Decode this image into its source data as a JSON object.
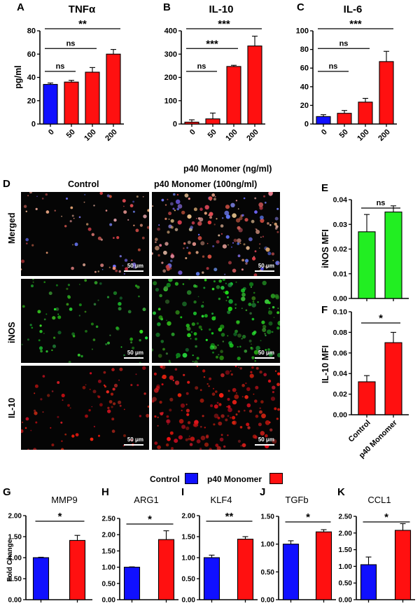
{
  "panel_letters": {
    "A": "A",
    "B": "B",
    "C": "C",
    "D": "D",
    "E": "E",
    "F": "F",
    "G": "G",
    "H": "H",
    "I": "I",
    "J": "J",
    "K": "K"
  },
  "shared_xlabel": "p40 Monomer (ng/ml)",
  "colors": {
    "control": "#1010ff",
    "p40": "#ff1010",
    "green": "#22ee22",
    "grid": "#000000"
  },
  "microscopy": {
    "columns": [
      "Control",
      "p40 Monomer (100ng/ml)"
    ],
    "rows": [
      "Merged",
      "iNOS",
      "IL-10"
    ],
    "scale_bar": "50 μm"
  },
  "legend": {
    "control": "Control",
    "p40": "p40 Monomer"
  },
  "chart_data": [
    {
      "id": "A",
      "type": "bar",
      "title": "TNFα",
      "ylabel": "pg/ml",
      "categories": [
        "0",
        "50",
        "100",
        "200"
      ],
      "values": [
        34,
        36,
        44.5,
        60
      ],
      "errors": [
        1.2,
        1.5,
        4,
        4
      ],
      "ylim": [
        0,
        80
      ],
      "yticks": [
        0,
        20,
        40,
        60,
        80
      ],
      "colors": [
        "control",
        "p40",
        "p40",
        "p40"
      ],
      "annotations": [
        {
          "from": 0,
          "to": 1,
          "label": "ns"
        },
        {
          "from": 0,
          "to": 2,
          "label": "ns"
        },
        {
          "from": 0,
          "to": 3,
          "label": "**"
        }
      ]
    },
    {
      "id": "B",
      "type": "bar",
      "title": "IL-10",
      "ylabel": "",
      "categories": [
        "0",
        "50",
        "100",
        "200"
      ],
      "values": [
        8,
        22,
        247,
        335
      ],
      "errors": [
        10,
        25,
        5,
        42
      ],
      "ylim": [
        0,
        400
      ],
      "yticks": [
        0,
        100,
        200,
        300,
        400
      ],
      "colors": [
        "p40",
        "p40",
        "p40",
        "p40"
      ],
      "annotations": [
        {
          "from": 0,
          "to": 1,
          "label": "ns"
        },
        {
          "from": 0,
          "to": 2,
          "label": "***"
        },
        {
          "from": 0,
          "to": 3,
          "label": "***"
        }
      ]
    },
    {
      "id": "C",
      "type": "bar",
      "title": "IL-6",
      "ylabel": "",
      "categories": [
        "0",
        "50",
        "100",
        "200"
      ],
      "values": [
        8,
        11.5,
        23.5,
        67
      ],
      "errors": [
        2,
        3,
        4,
        11
      ],
      "ylim": [
        0,
        100
      ],
      "yticks": [
        0,
        20,
        40,
        60,
        80,
        100
      ],
      "colors": [
        "control",
        "p40",
        "p40",
        "p40"
      ],
      "annotations": [
        {
          "from": 0,
          "to": 1,
          "label": "ns"
        },
        {
          "from": 0,
          "to": 2,
          "label": "ns"
        },
        {
          "from": 0,
          "to": 3,
          "label": "***"
        }
      ]
    },
    {
      "id": "E",
      "type": "bar",
      "title": "",
      "ylabel": "iNOS MFI",
      "categories": [
        "",
        ""
      ],
      "values": [
        0.027,
        0.035
      ],
      "errors": [
        0.007,
        0.0025
      ],
      "ylim": [
        0,
        0.04
      ],
      "yticks": [
        0.0,
        0.01,
        0.02,
        0.03,
        0.04
      ],
      "colors": [
        "green",
        "green"
      ],
      "annotations": [
        {
          "from": 0,
          "to": 1,
          "label": "ns"
        }
      ]
    },
    {
      "id": "F",
      "type": "bar",
      "title": "",
      "ylabel": "IL-10 MFI",
      "categories": [
        "Control",
        "p40 Monomer"
      ],
      "values": [
        0.032,
        0.07
      ],
      "errors": [
        0.006,
        0.01
      ],
      "ylim": [
        0,
        0.1
      ],
      "yticks": [
        0.0,
        0.02,
        0.04,
        0.06,
        0.08,
        0.1
      ],
      "colors": [
        "p40",
        "p40"
      ],
      "annotations": [
        {
          "from": 0,
          "to": 1,
          "label": "*"
        }
      ]
    },
    {
      "id": "G",
      "type": "bar",
      "title": "MMP9",
      "ylabel": "Fold Change",
      "categories": [
        "",
        ""
      ],
      "values": [
        1.0,
        1.41
      ],
      "errors": [
        0.01,
        0.12
      ],
      "ylim": [
        0,
        2.0
      ],
      "yticks": [
        0.0,
        0.5,
        1.0,
        1.5,
        2.0
      ],
      "colors": [
        "control",
        "p40"
      ],
      "annotations": [
        {
          "from": 0,
          "to": 1,
          "label": "*"
        }
      ]
    },
    {
      "id": "H",
      "type": "bar",
      "title": "ARG1",
      "ylabel": "",
      "categories": [
        "",
        ""
      ],
      "values": [
        1.0,
        1.85
      ],
      "errors": [
        0.01,
        0.27
      ],
      "ylim": [
        0,
        2.5
      ],
      "yticks": [
        0.0,
        0.5,
        1.0,
        1.5,
        2.0,
        2.5
      ],
      "colors": [
        "control",
        "p40"
      ],
      "annotations": [
        {
          "from": 0,
          "to": 1,
          "label": "*"
        }
      ]
    },
    {
      "id": "I",
      "type": "bar",
      "title": "KLF4",
      "ylabel": "",
      "categories": [
        "",
        ""
      ],
      "values": [
        1.0,
        1.44
      ],
      "errors": [
        0.06,
        0.06
      ],
      "ylim": [
        0,
        2.0
      ],
      "yticks": [
        0.0,
        0.5,
        1.0,
        1.5,
        2.0
      ],
      "colors": [
        "control",
        "p40"
      ],
      "annotations": [
        {
          "from": 0,
          "to": 1,
          "label": "**"
        }
      ]
    },
    {
      "id": "J",
      "type": "bar",
      "title": "TGFb",
      "ylabel": "",
      "categories": [
        "",
        ""
      ],
      "values": [
        1.0,
        1.22
      ],
      "errors": [
        0.06,
        0.04
      ],
      "ylim": [
        0,
        1.5
      ],
      "yticks": [
        0.0,
        0.5,
        1.0,
        1.5
      ],
      "colors": [
        "control",
        "p40"
      ],
      "annotations": [
        {
          "from": 0,
          "to": 1,
          "label": "*"
        }
      ]
    },
    {
      "id": "K",
      "type": "bar",
      "title": "CCL1",
      "ylabel": "",
      "categories": [
        "",
        ""
      ],
      "values": [
        1.05,
        2.08
      ],
      "errors": [
        0.23,
        0.2
      ],
      "ylim": [
        0,
        2.5
      ],
      "yticks": [
        0.0,
        0.5,
        1.0,
        1.5,
        2.0,
        2.5
      ],
      "colors": [
        "control",
        "p40"
      ],
      "annotations": [
        {
          "from": 0,
          "to": 1,
          "label": "*"
        }
      ]
    }
  ]
}
